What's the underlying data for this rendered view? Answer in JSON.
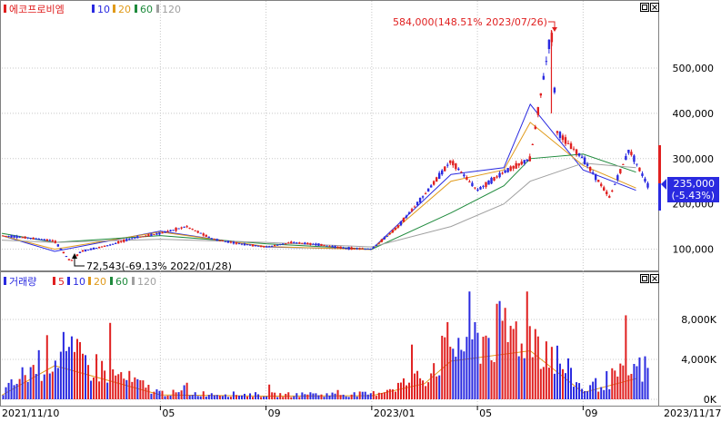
{
  "price_panel": {
    "stock_name": "에코프로비엠",
    "legend": [
      {
        "label": "10",
        "color": "#2a2ae0"
      },
      {
        "label": "20",
        "color": "#e09a1a"
      },
      {
        "label": "60",
        "color": "#1e8a3c"
      },
      {
        "label": "120",
        "color": "#a0a0a0"
      }
    ],
    "max_note": "584,000(148.51% 2023/07/26)",
    "min_note": "72,543(-69.13% 2022/01/28)",
    "current_price": "235,000",
    "current_change": "(-5.43%)"
  },
  "volume_panel": {
    "title": "거래량",
    "legend": [
      {
        "label": "5",
        "color": "#e02020"
      },
      {
        "label": "10",
        "color": "#2a2ae0"
      },
      {
        "label": "20",
        "color": "#e09a1a"
      },
      {
        "label": "60",
        "color": "#1e8a3c"
      },
      {
        "label": "120",
        "color": "#a0a0a0"
      }
    ]
  },
  "x_axis": {
    "start_label": "2021/11/10",
    "end_label": "2023/11/17",
    "ticks": [
      "05",
      "09",
      "2023/01",
      "05",
      "09"
    ]
  },
  "colors": {
    "up": "#e02020",
    "down": "#2a2ae0",
    "grid": "#c8c8c8",
    "frame": "#808080"
  },
  "chart_data": [
    {
      "type": "candlestick",
      "title": "에코프로비엠",
      "x_range": [
        "2021/11/10",
        "2023/11/17"
      ],
      "y_ticks": [
        "100,000",
        "200,000",
        "300,000",
        "400,000",
        "500,000"
      ],
      "ylim": [
        50000,
        600000
      ],
      "series": [
        {
          "name": "10",
          "x": [
            "2021/11",
            "2022/01",
            "2022/05",
            "2022/09",
            "2023/01",
            "2023/04",
            "2023/06",
            "2023/07",
            "2023/09",
            "2023/11"
          ],
          "values": [
            130000,
            95000,
            140000,
            105000,
            100000,
            265000,
            280000,
            420000,
            275000,
            230000
          ]
        },
        {
          "name": "20",
          "x": [
            "2021/11",
            "2022/01",
            "2022/05",
            "2022/09",
            "2023/01",
            "2023/04",
            "2023/06",
            "2023/07",
            "2023/09",
            "2023/11"
          ],
          "values": [
            130000,
            100000,
            138000,
            106000,
            99000,
            250000,
            275000,
            380000,
            285000,
            235000
          ]
        },
        {
          "name": "60",
          "x": [
            "2021/11",
            "2022/01",
            "2022/05",
            "2022/09",
            "2023/01",
            "2023/04",
            "2023/06",
            "2023/07",
            "2023/09",
            "2023/11"
          ],
          "values": [
            135000,
            115000,
            130000,
            112000,
            100000,
            180000,
            240000,
            300000,
            310000,
            270000
          ]
        },
        {
          "name": "120",
          "x": [
            "2021/11",
            "2022/01",
            "2022/05",
            "2022/09",
            "2023/01",
            "2023/04",
            "2023/06",
            "2023/07",
            "2023/09",
            "2023/11"
          ],
          "values": [
            120000,
            115000,
            122000,
            115000,
            105000,
            150000,
            200000,
            250000,
            290000,
            280000
          ]
        }
      ]
    },
    {
      "type": "bar",
      "title": "거래량",
      "y_ticks": [
        "0K",
        "4,000K",
        "8,000K"
      ],
      "ylim": [
        0,
        11000
      ],
      "series": [
        {
          "name": "volume",
          "x": [
            "2021/11",
            "2022/01",
            "2022/05",
            "2022/09",
            "2023/01",
            "2023/03",
            "2023/04",
            "2023/07",
            "2023/09",
            "2023/11"
          ],
          "values": [
            900,
            7500,
            1000,
            700,
            800,
            3500,
            8500,
            10800,
            1500,
            4600
          ]
        }
      ]
    }
  ]
}
